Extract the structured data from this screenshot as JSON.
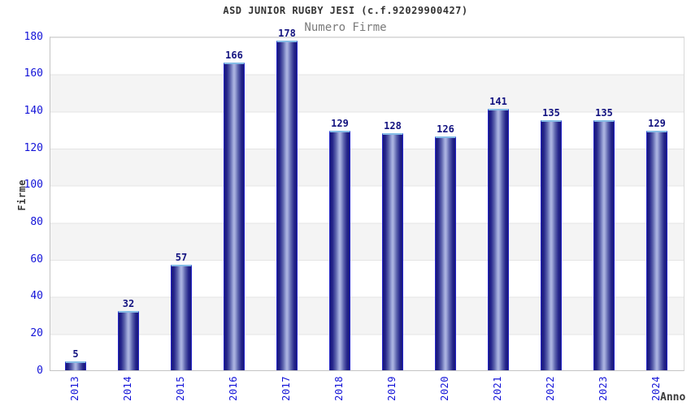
{
  "header": {
    "title": "ASD JUNIOR RUGBY JESI (c.f.92029900427)",
    "subtitle": "Numero Firme"
  },
  "chart_data": {
    "type": "bar",
    "title": "ASD JUNIOR RUGBY JESI (c.f.92029900427)",
    "subtitle": "Numero Firme",
    "categories": [
      "2013",
      "2014",
      "2015",
      "2016",
      "2017",
      "2018",
      "2019",
      "2020",
      "2021",
      "2022",
      "2023",
      "2024"
    ],
    "values": [
      5,
      32,
      57,
      166,
      178,
      129,
      128,
      126,
      141,
      135,
      135,
      129
    ],
    "xlabel": "Anno",
    "ylabel": "Firme",
    "ylim": [
      0,
      180
    ],
    "ytick_step": 20,
    "yticks": [
      0,
      20,
      40,
      60,
      80,
      100,
      120,
      140,
      160,
      180
    ],
    "grid": "alternating horizontal bands with light gridlines",
    "legend_position": "none",
    "styles": {
      "tick_color": "#1414d8",
      "value_label_color": "#131380",
      "title_color": "#333333",
      "subtitle_color": "#7a7a7a",
      "axis_title_color": "#3a3a3a",
      "band_color": "#f4f4f4",
      "bar_dark_color": "#19197a",
      "bar_light_color": "#aeb6e2",
      "bar_edge_color": "#2424c8",
      "bar_top_color": "#85bce6"
    }
  }
}
